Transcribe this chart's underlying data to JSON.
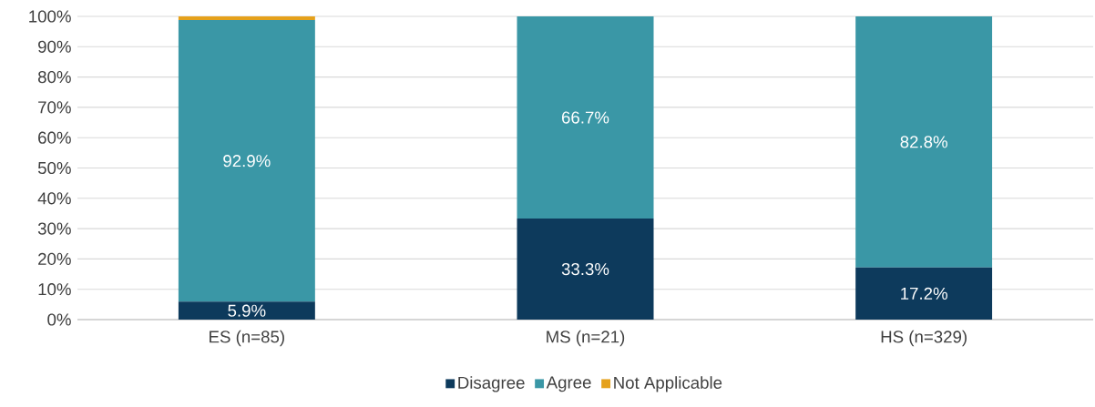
{
  "chart_data": {
    "type": "bar",
    "stacked": true,
    "categories": [
      "ES (n=85)",
      "MS (n=21)",
      "HS (n=329)"
    ],
    "series": [
      {
        "name": "Disagree",
        "color": "#0d3a5c",
        "values": [
          5.9,
          33.3,
          17.2
        ],
        "value_labels": [
          "5.9%",
          "33.3%",
          "17.2%"
        ]
      },
      {
        "name": "Agree",
        "color": "#3a97a6",
        "values": [
          92.9,
          66.7,
          82.8
        ],
        "value_labels": [
          "92.9%",
          "66.7%",
          "82.8%"
        ]
      },
      {
        "name": "Not Applicable",
        "color": "#e5a11b",
        "values": [
          1.2,
          null,
          null
        ],
        "value_labels": [
          null,
          null,
          null
        ]
      }
    ],
    "ylim": [
      0,
      100
    ],
    "yticks": [
      {
        "value": 0,
        "label": "0%"
      },
      {
        "value": 10,
        "label": "10%"
      },
      {
        "value": 20,
        "label": "20%"
      },
      {
        "value": 30,
        "label": "30%"
      },
      {
        "value": 40,
        "label": "40%"
      },
      {
        "value": 50,
        "label": "50%"
      },
      {
        "value": 60,
        "label": "60%"
      },
      {
        "value": 70,
        "label": "70%"
      },
      {
        "value": 80,
        "label": "80%"
      },
      {
        "value": 90,
        "label": "90%"
      },
      {
        "value": 100,
        "label": "100%"
      }
    ],
    "grid": "y",
    "legend": "bottom"
  }
}
